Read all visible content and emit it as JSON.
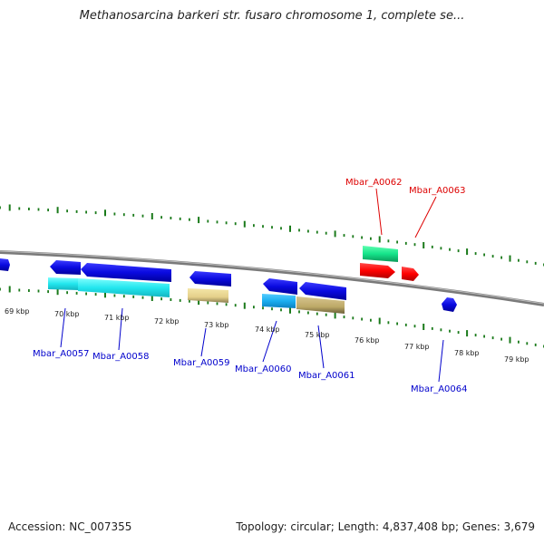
{
  "title": "Methanosarcina barkeri str. fusaro chromosome 1, complete se...",
  "footer": {
    "accession": "Accession: NC_007355",
    "summary": "Topology: circular; Length: 4,837,408 bp; Genes: 3,679"
  },
  "colors": {
    "backbone": "#808080",
    "tick": "#1a7a1a",
    "gene_label_forward": "#0000cc",
    "gene_label_reverse": "#dd0000"
  },
  "scale_labels": [
    "69 kbp",
    "70 kbp",
    "71 kbp",
    "72 kbp",
    "73 kbp",
    "74 kbp",
    "75 kbp",
    "76 kbp",
    "77 kbp",
    "78 kbp",
    "79 kbp"
  ],
  "gene_labels": [
    {
      "name": "Mbar_A0057",
      "strand": "forward"
    },
    {
      "name": "Mbar_A0058",
      "strand": "forward"
    },
    {
      "name": "Mbar_A0059",
      "strand": "forward"
    },
    {
      "name": "Mbar_A0060",
      "strand": "forward"
    },
    {
      "name": "Mbar_A0061",
      "strand": "forward"
    },
    {
      "name": "Mbar_A0062",
      "strand": "reverse"
    },
    {
      "name": "Mbar_A0063",
      "strand": "reverse"
    },
    {
      "name": "Mbar_A0064",
      "strand": "forward"
    }
  ]
}
